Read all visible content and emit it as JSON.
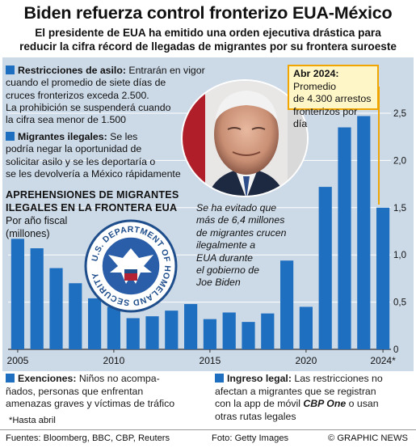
{
  "title": "Biden refuerza control fronterizo EUA-México",
  "subtitle_line1": "El presidente de EUA ha emitido una orden ejecutiva drástica para",
  "subtitle_line2": "reducir la cifra récord de llegadas de migrantes por su frontera suroeste",
  "bullets": {
    "asylum": {
      "heading": "Restricciones de asilo:",
      "lines": [
        "Entrarán en vigor",
        "cuando el promedio de siete días de",
        "cruces fronterizos exceda 2.500.",
        "La prohibición se suspenderá cuando",
        "la cifra sea menor de 1.500"
      ]
    },
    "illegal": {
      "heading": "Migrantes ilegales:",
      "lines": [
        "Se les",
        "podría negar la oportunidad de",
        "solicitar asilo y se les deportaría o",
        "se les devolvería a México rápidamente"
      ]
    },
    "exemptions": {
      "heading": "Exenciones:",
      "lines": [
        "Niños no acompa-",
        "ñados, personas que enfrentan",
        "amenazas graves y víctimas de tráfico"
      ]
    },
    "legal": {
      "heading": "Ingreso legal:",
      "lines": [
        "Las restricciones no",
        "afectan a migrantes que se registran",
        "con la app de móvil",
        "CBP One",
        "o usan",
        "otras rutas legales"
      ]
    }
  },
  "chart_heading_line1": "APREHENSIONES DE MIGRANTES",
  "chart_heading_line2": "ILEGALES EN LA FRONTERA EUA",
  "chart_sub_line1": "Por año fiscal",
  "chart_sub_line2": "(millones)",
  "callout": {
    "date": "Abr 2024:",
    "line1": "Promedio",
    "line2": "de 4.300 arrestos",
    "line3": "fronterizos por día"
  },
  "italic_note": [
    "Se ha evitado que",
    "más de 6,4 millones",
    "de migrantes crucen",
    "ilegalmente a",
    "EUA durante",
    "el gobierno de",
    "Joe Biden"
  ],
  "seal_text": "U.S. DEPARTMENT OF HOMELAND SECURITY",
  "footnote": "*Hasta abril",
  "footer": {
    "sources": "Fuentes: Bloomberg, BBC, CBP, Reuters",
    "photo": "Foto: Getty Images",
    "brand": "© GRAPHIC NEWS"
  },
  "colors": {
    "bar": "#1f6fc0",
    "panel": "#ccd9e7",
    "accent": "#f0a500",
    "callout_bg": "#fff6c8"
  },
  "chart_data": {
    "type": "bar",
    "categories": [
      "2005",
      "2006",
      "2007",
      "2008",
      "2009",
      "2010",
      "2011",
      "2012",
      "2013",
      "2014",
      "2015",
      "2016",
      "2017",
      "2018",
      "2019",
      "2020",
      "2021",
      "2022",
      "2023",
      "2024*"
    ],
    "values": [
      1.17,
      1.07,
      0.86,
      0.7,
      0.54,
      0.45,
      0.33,
      0.35,
      0.41,
      0.48,
      0.32,
      0.39,
      0.29,
      0.38,
      0.94,
      0.45,
      1.72,
      2.35,
      2.47,
      1.5
    ],
    "x_tick_labels": [
      "2005",
      "2010",
      "2015",
      "2020",
      "2024*"
    ],
    "y_tick_labels": [
      "0",
      "0,5",
      "1,0",
      "1,5",
      "2,0",
      "2,5"
    ],
    "y_ticks": [
      0,
      0.5,
      1.0,
      1.5,
      2.0,
      2.5
    ],
    "ylim": [
      0,
      2.5
    ],
    "grid": true
  }
}
